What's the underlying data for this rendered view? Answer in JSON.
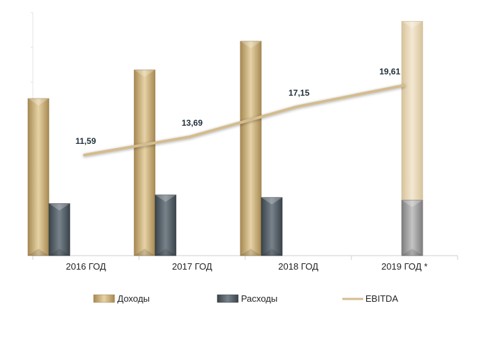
{
  "chart_data": {
    "type": "bar",
    "categories": [
      "2016 ГОД",
      "2017 ГОД",
      "2018 ГОД",
      "2019 ГОД *"
    ],
    "series": [
      {
        "name": "Доходы",
        "kind": "bar",
        "color": "#cbb27d",
        "values": [
          18.1,
          21.4,
          24.7,
          27.0
        ]
      },
      {
        "name": "Расходы",
        "kind": "bar",
        "color": "#5a646c",
        "values": [
          6.0,
          7.0,
          6.7,
          6.4
        ]
      },
      {
        "name": "EBITDA",
        "kind": "line",
        "color": "#d4bc8e",
        "values": [
          11.59,
          13.69,
          17.15,
          19.61
        ],
        "labels": [
          "11,59",
          "13,69",
          "17,15",
          "19,61"
        ]
      }
    ],
    "forecast_colors": {
      "income": "#e4d3b0",
      "expense": "#9a9a9a"
    },
    "ylim": [
      0,
      28
    ],
    "grid": false,
    "legend_position": "bottom"
  }
}
